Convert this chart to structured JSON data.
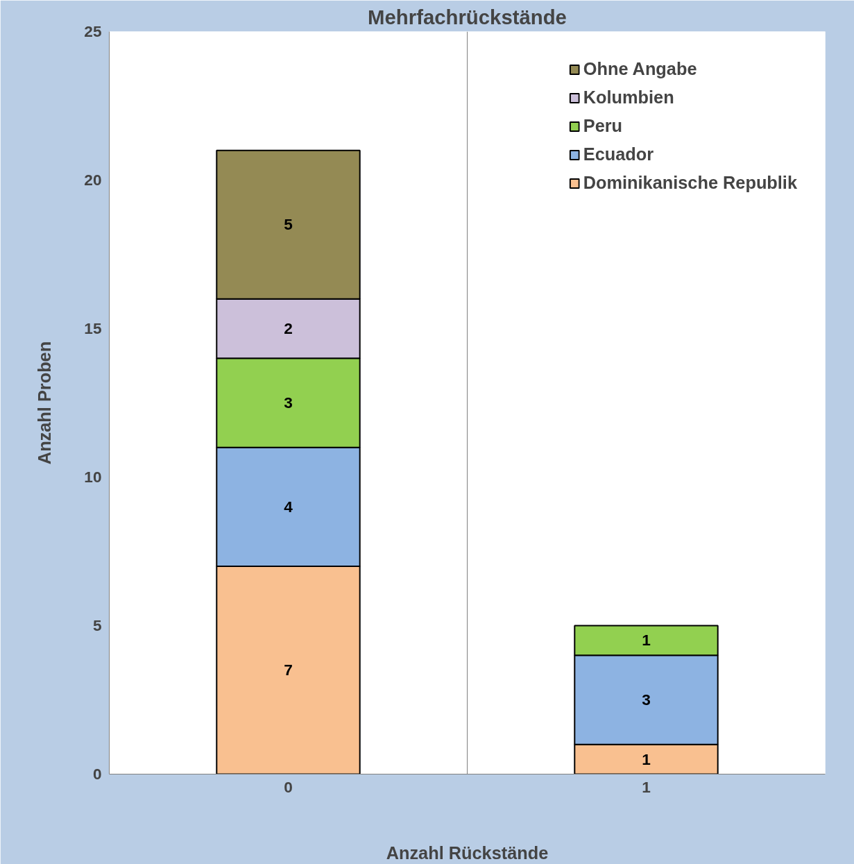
{
  "chart_data": {
    "type": "bar",
    "title": "Mehrfachrückstände",
    "xlabel": "Anzahl Rückstände",
    "ylabel": "Anzahl Proben",
    "categories": [
      "0",
      "1"
    ],
    "stacked": true,
    "data_labels": true,
    "legend": "top right",
    "grid": "x",
    "ylim": [
      0,
      25
    ],
    "yticks": [
      0,
      5,
      10,
      15,
      20,
      25
    ],
    "series": [
      {
        "name": "Dominikanische Republik",
        "color": "#f9c090",
        "values": [
          7,
          1
        ]
      },
      {
        "name": "Ecuador",
        "color": "#8db3e2",
        "values": [
          4,
          3
        ]
      },
      {
        "name": "Peru",
        "color": "#92d050",
        "values": [
          3,
          1
        ]
      },
      {
        "name": "Kolumbien",
        "color": "#ccc0da",
        "values": [
          2,
          null
        ]
      },
      {
        "name": "Ohne Angabe",
        "color": "#948a54",
        "values": [
          5,
          null
        ]
      }
    ]
  }
}
